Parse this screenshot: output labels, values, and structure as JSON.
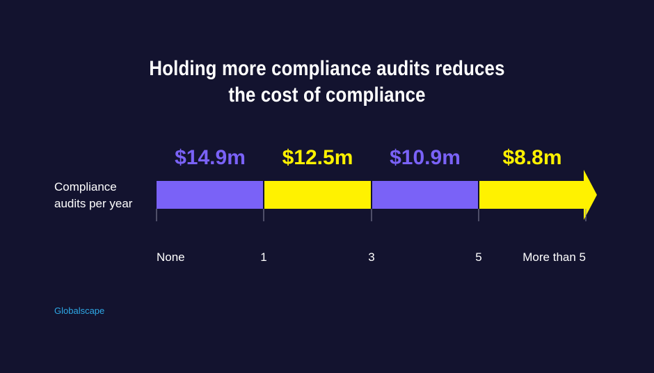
{
  "title_lines": [
    "Holding more compliance audits reduces",
    "the cost of compliance"
  ],
  "row_label_lines": [
    "Compliance",
    "audits per year"
  ],
  "source": "Globalscape",
  "colors": {
    "background": "#13132f",
    "purple": "#7a62f7",
    "yellow": "#fff200",
    "tick": "#8a8aa0",
    "source": "#2ea8e6"
  },
  "chart_data": {
    "type": "bar",
    "categories": [
      "None",
      "1",
      "3",
      "5",
      "More than 5"
    ],
    "series": [
      {
        "segments": [
          {
            "from": "None",
            "to": "1",
            "value": 14.9,
            "label": "$14.9m",
            "color": "purple"
          },
          {
            "from": "1",
            "to": "3",
            "value": 12.5,
            "label": "$12.5m",
            "color": "yellow"
          },
          {
            "from": "3",
            "to": "5",
            "value": 10.9,
            "label": "$10.9m",
            "color": "purple"
          },
          {
            "from": "5",
            "to": "More than 5",
            "value": 8.8,
            "label": "$8.8m",
            "color": "yellow"
          }
        ]
      }
    ],
    "arrow_end": true,
    "title": "Holding more compliance audits reduces the cost of compliance"
  }
}
